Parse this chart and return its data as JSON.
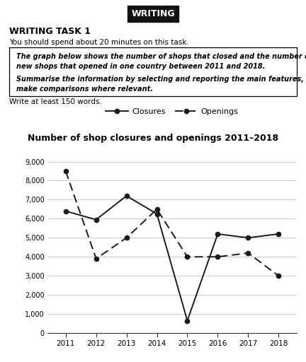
{
  "years": [
    2011,
    2012,
    2013,
    2014,
    2015,
    2016,
    2017,
    2018
  ],
  "closures": [
    6400,
    5950,
    7200,
    6250,
    650,
    5200,
    5000,
    5200
  ],
  "openings": [
    8500,
    3900,
    5000,
    6500,
    4000,
    4000,
    4200,
    3000
  ],
  "chart_title": "Number of shop closures and openings 2011–2018",
  "ylabel_ticks": [
    "0",
    "1,000",
    "2,000",
    "3,000",
    "4,000",
    "5,000",
    "6,000",
    "7,000",
    "8,000",
    "9,000"
  ],
  "ytick_vals": [
    0,
    1000,
    2000,
    3000,
    4000,
    5000,
    6000,
    7000,
    8000,
    9000
  ],
  "ylim": [
    0,
    9500
  ],
  "header_text": "WRITING",
  "task_title": "WRITING TASK 1",
  "task_subtitle": "You should spend about 20 minutes on this task.",
  "box_line1": "The graph below shows the number of shops that closed and the number of",
  "box_line2": "new shops that opened in one country between 2011 and 2018.",
  "box_line3": "Summarise the information by selecting and reporting the main features, and",
  "box_line4": "make comparisons where relevant.",
  "footer_text": "Write at least 150 words.",
  "line_color": "#1a1a1a",
  "bg_color": "#ffffff",
  "grid_color": "#cccccc"
}
